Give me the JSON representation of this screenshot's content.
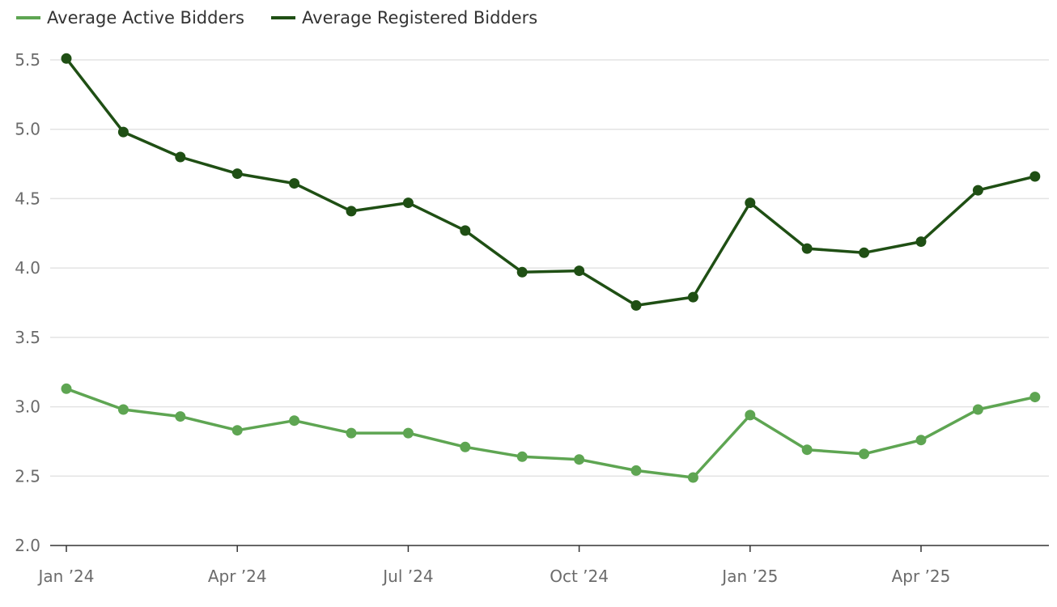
{
  "chart_data": {
    "type": "line",
    "x": [
      "2024-01",
      "2024-02",
      "2024-03",
      "2024-04",
      "2024-05",
      "2024-06",
      "2024-07",
      "2024-08",
      "2024-09",
      "2024-10",
      "2024-11",
      "2024-12",
      "2025-01",
      "2025-02",
      "2025-03",
      "2025-04",
      "2025-05",
      "2025-06"
    ],
    "series": [
      {
        "name": "Average Active Bidders",
        "color": "#5ea552",
        "values": [
          3.13,
          2.98,
          2.93,
          2.83,
          2.9,
          2.81,
          2.81,
          2.71,
          2.64,
          2.62,
          2.54,
          2.49,
          2.94,
          2.69,
          2.66,
          2.76,
          2.98,
          3.07
        ]
      },
      {
        "name": "Average Registered Bidders",
        "color": "#1f4f14",
        "values": [
          5.51,
          4.98,
          4.8,
          4.68,
          4.61,
          4.41,
          4.47,
          4.27,
          3.97,
          3.98,
          3.73,
          3.79,
          4.47,
          4.14,
          4.11,
          4.19,
          4.56,
          4.66
        ]
      }
    ],
    "y_ticks": [
      "2.0",
      "2.5",
      "3.0",
      "3.5",
      "4.0",
      "4.5",
      "5.0",
      "5.5"
    ],
    "y_tick_values": [
      2.0,
      2.5,
      3.0,
      3.5,
      4.0,
      4.5,
      5.0,
      5.5
    ],
    "x_ticks": [
      {
        "label": "Jan ’24",
        "index": 0
      },
      {
        "label": "Apr ’24",
        "index": 3
      },
      {
        "label": "Jul ’24",
        "index": 6
      },
      {
        "label": "Oct ’24",
        "index": 9
      },
      {
        "label": "Jan ’25",
        "index": 12
      },
      {
        "label": "Apr ’25",
        "index": 15
      }
    ],
    "ylim": [
      2.0,
      5.5
    ],
    "grid": true,
    "legend_position": "top-left",
    "title": "",
    "xlabel": "",
    "ylabel": ""
  }
}
